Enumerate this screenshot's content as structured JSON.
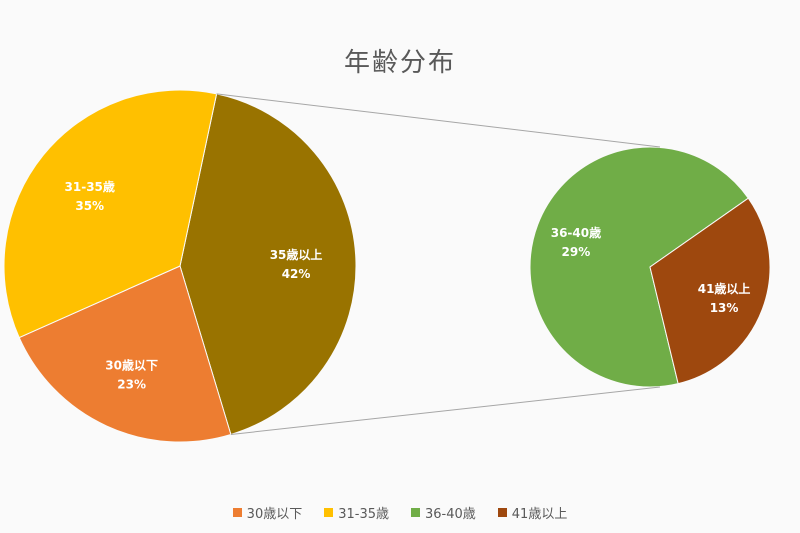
{
  "chart_data": {
    "type": "pie",
    "title": "年齢分布",
    "main_pie": {
      "slices": [
        {
          "label": "35歳以上",
          "value": 42,
          "display": "42%",
          "color": "#997300"
        },
        {
          "label": "30歳以下",
          "value": 23,
          "display": "23%",
          "color": "#ED7D31"
        },
        {
          "label": "31-35歳",
          "value": 35,
          "display": "35%",
          "color": "#FFC000"
        }
      ]
    },
    "breakout_pie": {
      "parent": "35歳以上",
      "slices": [
        {
          "label": "36-40歳",
          "value": 29,
          "display": "29%",
          "color": "#70AD47"
        },
        {
          "label": "41歳以上",
          "value": 13,
          "display": "13%",
          "color": "#9E480E"
        }
      ]
    },
    "legend": [
      {
        "label": "30歳以下",
        "color": "#ED7D31"
      },
      {
        "label": "31-35歳",
        "color": "#FFC000"
      },
      {
        "label": "36-40歳",
        "color": "#70AD47"
      },
      {
        "label": "41歳以上",
        "color": "#9E480E"
      }
    ],
    "legend_position": "bottom",
    "connector_color": "#A6A6A6"
  }
}
